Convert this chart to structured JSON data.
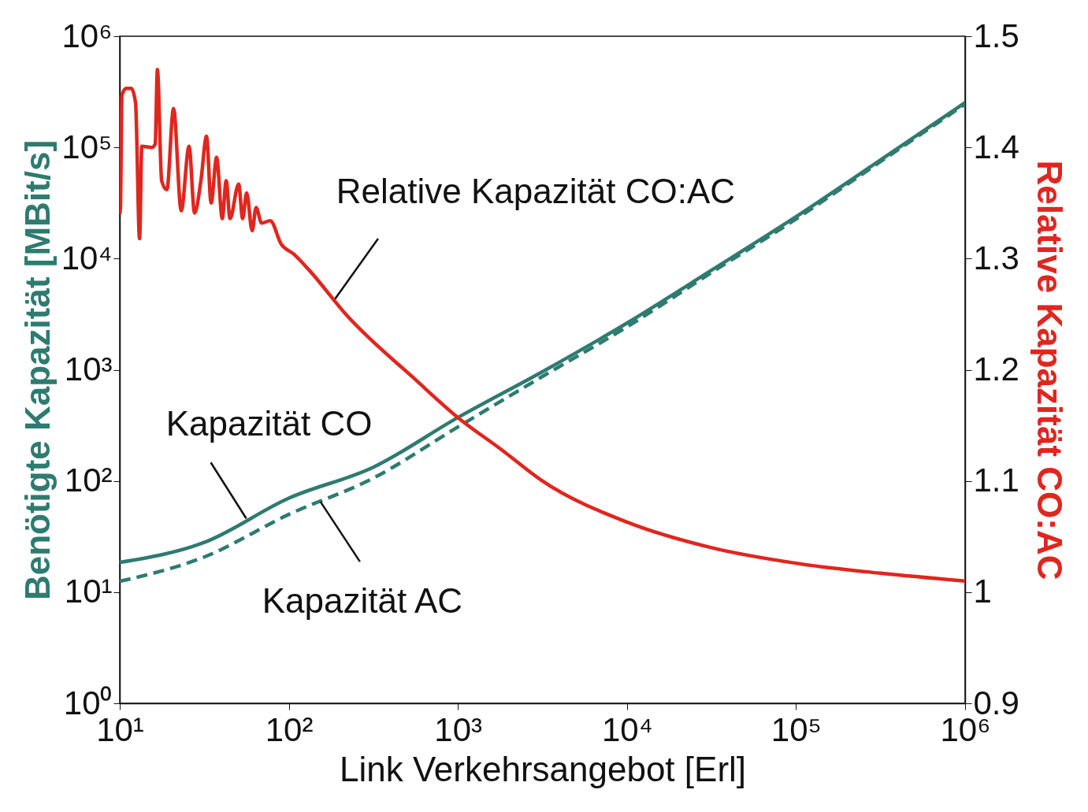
{
  "chart_data": {
    "type": "line",
    "xlabel": "Link Verkehrsangebot [Erl]",
    "ylabel": "Benötigte Kapazität [MBit/s]",
    "y2label": "Relative Kapazität CO:AC",
    "log": "xy",
    "grid": false,
    "legend": false,
    "xlim": [
      10,
      1000000
    ],
    "xticks": [
      {
        "value": 10,
        "label": "10¹"
      },
      {
        "value": 100,
        "label": "10²"
      },
      {
        "value": 1000,
        "label": "10³"
      },
      {
        "value": 10000,
        "label": "10⁴"
      },
      {
        "value": 100000,
        "label": "10⁵"
      },
      {
        "value": 1000000,
        "label": "10⁶"
      }
    ],
    "ylim": [
      1,
      1000000
    ],
    "yticks": [
      {
        "value": 1,
        "label": "10⁰"
      },
      {
        "value": 10,
        "label": "10¹"
      },
      {
        "value": 100,
        "label": "10²"
      },
      {
        "value": 1000,
        "label": "10³"
      },
      {
        "value": 10000,
        "label": "10⁴"
      },
      {
        "value": 100000,
        "label": "10⁵"
      },
      {
        "value": 1000000,
        "label": "10⁶"
      }
    ],
    "y2lim": [
      0.9,
      1.5
    ],
    "y2ticks": [
      0.9,
      1,
      1.1,
      1.2,
      1.3,
      1.4,
      1.5
    ],
    "series": [
      {
        "color": "#2e7b70",
        "line_style": "solid",
        "x": [
          10,
          31.6,
          100,
          316,
          1000,
          3160,
          10000,
          31600,
          100000,
          316000,
          1000000
        ],
        "values": [
          18.5,
          28,
          70,
          133,
          372,
          960,
          2630,
          7850,
          23800,
          77000,
          253000
        ]
      },
      {
        "color": "#2e7b70",
        "line_style": "dashed",
        "x": [
          10,
          31.6,
          100,
          316,
          1000,
          3160,
          10000,
          31600,
          100000,
          316000,
          1000000
        ],
        "values": [
          12.5,
          20.7,
          50,
          106,
          306,
          870,
          2430,
          7480,
          22700,
          74500,
          245000
        ]
      },
      {
        "color": "#e0261e",
        "line_style": "solid",
        "axis": "y2",
        "x": [
          10,
          10.1,
          10.3,
          10.9,
          11.7,
          12.4,
          13.1,
          13.5,
          15.5,
          16.2,
          16.7,
          17.7,
          19.0,
          20.8,
          23.1,
          25.7,
          27.7,
          30.2,
          32.6,
          34.7,
          37.4,
          40.4,
          42.6,
          44.9,
          50.5,
          53.3,
          56.3,
          60.7,
          64.0,
          69.0,
          77.6,
          90.2,
          107,
          133,
          220,
          562,
          1000,
          1780,
          3160,
          10000,
          31600,
          100000,
          316000,
          1000000
        ],
        "values": [
          1.34,
          1.348,
          1.447,
          1.453,
          1.453,
          1.44,
          1.318,
          1.401,
          1.4,
          1.403,
          1.47,
          1.37,
          1.362,
          1.435,
          1.343,
          1.401,
          1.341,
          1.37,
          1.41,
          1.35,
          1.391,
          1.336,
          1.37,
          1.336,
          1.367,
          1.336,
          1.359,
          1.325,
          1.346,
          1.332,
          1.334,
          1.313,
          1.304,
          1.289,
          1.249,
          1.191,
          1.157,
          1.129,
          1.1,
          1.063,
          1.04,
          1.026,
          1.017,
          1.01
        ]
      }
    ],
    "annotations": [
      {
        "text": "Relative Kapazität CO:AC",
        "x": 187,
        "y": 4300
      },
      {
        "text": "Kapazität CO",
        "x": 56,
        "y": 46
      },
      {
        "text": "Kapazität AC",
        "x": 154,
        "y": 65
      }
    ]
  }
}
